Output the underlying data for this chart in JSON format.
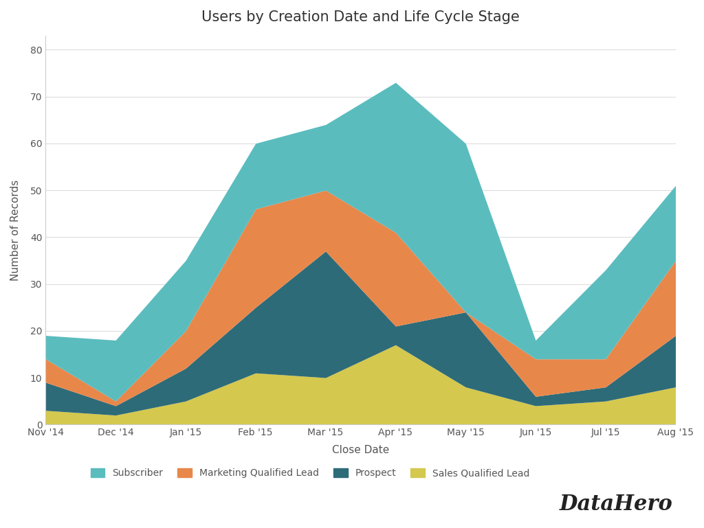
{
  "title": "Users by Creation Date and Life Cycle Stage",
  "xlabel": "Close Date",
  "ylabel": "Number of Records",
  "background_color": "#ffffff",
  "x_labels": [
    "Nov '14",
    "Dec '14",
    "Jan '15",
    "Feb '15",
    "Mar '15",
    "Apr '15",
    "May '15",
    "Jun '15",
    "Jul '15",
    "Aug '15"
  ],
  "series": {
    "Sales Qualified Lead": {
      "color": "#d4c84e",
      "values": [
        3,
        2,
        5,
        11,
        10,
        17,
        8,
        4,
        5,
        8
      ]
    },
    "Prospect": {
      "color": "#2e6b78",
      "values": [
        6,
        2,
        7,
        14,
        27,
        4,
        16,
        2,
        3,
        11
      ]
    },
    "Marketing Qualified Lead": {
      "color": "#e8874a",
      "values": [
        5,
        1,
        8,
        21,
        13,
        20,
        0,
        8,
        6,
        16
      ]
    },
    "Subscriber": {
      "color": "#5bbcbe",
      "values": [
        5,
        13,
        15,
        14,
        14,
        32,
        36,
        4,
        19,
        16
      ]
    }
  },
  "legend_order": [
    "Subscriber",
    "Marketing Qualified Lead",
    "Prospect",
    "Sales Qualified Lead"
  ],
  "ylim": [
    0,
    83
  ],
  "yticks": [
    0,
    10,
    20,
    30,
    40,
    50,
    60,
    70,
    80
  ],
  "title_fontsize": 15,
  "axis_fontsize": 11,
  "tick_fontsize": 10,
  "legend_fontsize": 10,
  "grid_color": "#dddddd",
  "text_color": "#555555",
  "title_color": "#333333"
}
